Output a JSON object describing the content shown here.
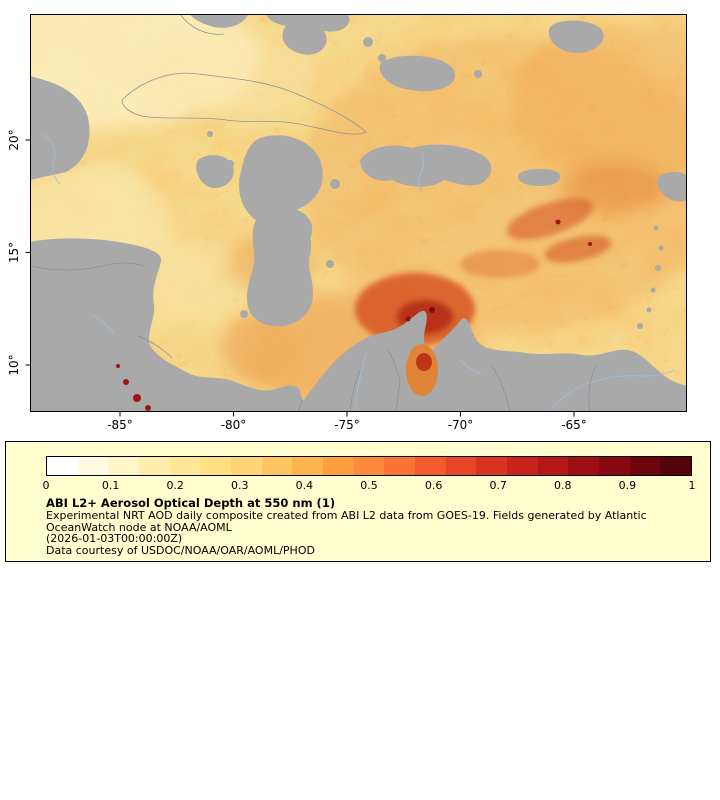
{
  "figure": {
    "x_ticks": [
      "-85°",
      "-80°",
      "-75°",
      "-70°",
      "-65°"
    ],
    "y_ticks": [
      "20°",
      "15°",
      "10°"
    ]
  },
  "map_colors": {
    "ocean_base": "#f6d98c",
    "land_and_missing_data": "#a9a9a9",
    "coastline": "#90959c",
    "river": "#9dbfdc",
    "hotspot_red": "#b02a12"
  },
  "legend": {
    "panel_bg": "#ffffd0",
    "title": "ABI L2+ Aerosol Optical Depth at 550 nm (1)",
    "lines": [
      "Experimental NRT AOD daily composite created from ABI L2 data from GOES-19. Fields generated by Atlantic",
      "OceanWatch node at NOAA/AOML",
      "(2026-01-03T00:00:00Z)",
      "Data courtesy of USDOC/NOAA/OAR/AOML/PHOD"
    ],
    "tick_labels": [
      "0",
      "0.1",
      "0.2",
      "0.3",
      "0.4",
      "0.5",
      "0.6",
      "0.7",
      "0.8",
      "0.9",
      "1"
    ],
    "segment_colors": [
      "#ffffff",
      "#fffbe3",
      "#fff5c6",
      "#ffeeab",
      "#ffe795",
      "#fedf84",
      "#fed576",
      "#fec661",
      "#feb44e",
      "#fe9f3e",
      "#fd8a3b",
      "#fa7335",
      "#f25c2d",
      "#e74726",
      "#d93420",
      "#c8241b",
      "#b41817",
      "#9e0f13",
      "#860a10",
      "#6c060c",
      "#530309"
    ]
  },
  "chart_data": {
    "type": "heatmap",
    "title": "ABI L2+ Aerosol Optical Depth at 550 nm (1)",
    "variable": "Aerosol Optical Depth at 550 nm",
    "colorbar": {
      "range": [
        0,
        1
      ],
      "ticks": [
        0,
        0.1,
        0.2,
        0.3,
        0.4,
        0.5,
        0.6,
        0.7,
        0.8,
        0.9,
        1
      ],
      "position": "bottom"
    },
    "x_axis": {
      "label": "longitude",
      "tick_values_deg": [
        -85,
        -80,
        -75,
        -70,
        -65
      ]
    },
    "y_axis": {
      "label": "latitude",
      "tick_values_deg": [
        20,
        15,
        10
      ]
    },
    "notes": "Gray areas are land / missing data; field is mostly 0.2-0.5 with red maxima 0.6-0.9 north of Colombia and scattered hotspots"
  }
}
